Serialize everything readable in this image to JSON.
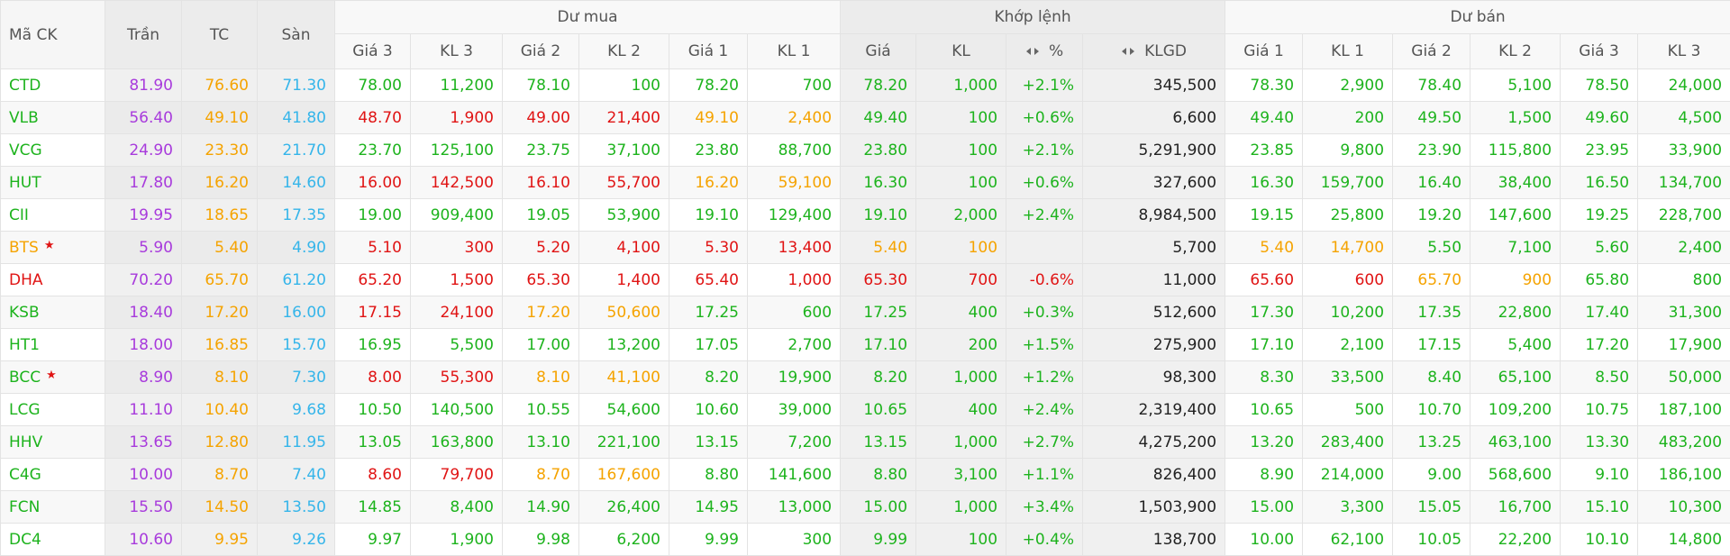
{
  "header": {
    "fixed": [
      "Mã CK",
      "Trần",
      "TC",
      "Sàn"
    ],
    "groups": [
      {
        "label": "Dư mua",
        "columns": [
          {
            "label": "Giá 3"
          },
          {
            "label": "KL 3"
          },
          {
            "label": "Giá 2"
          },
          {
            "label": "KL 2"
          },
          {
            "label": "Giá 1"
          },
          {
            "label": "KL 1"
          }
        ]
      },
      {
        "label": "Khớp lệnh",
        "columns": [
          {
            "label": "Giá"
          },
          {
            "label": "KL"
          },
          {
            "label": "%",
            "toggle": true
          },
          {
            "label": "KLGD",
            "toggle": true
          }
        ]
      },
      {
        "label": "Dư bán",
        "columns": [
          {
            "label": "Giá 1"
          },
          {
            "label": "KL 1"
          },
          {
            "label": "Giá 2"
          },
          {
            "label": "KL 2"
          },
          {
            "label": "Giá 3"
          },
          {
            "label": "KL 3"
          }
        ]
      }
    ]
  },
  "colors": {
    "ceiling": "#a83bdc",
    "reference": "#f5a300",
    "floor": "#35b5ea",
    "up": "#1db31d",
    "down": "#e01414",
    "star": "#e01414"
  },
  "table": {
    "rows": [
      {
        "cells": [
          "CTD",
          "81.90",
          "76.60",
          "71.30",
          "78.00",
          "11,200",
          "78.10",
          "100",
          "78.20",
          "700",
          "78.20",
          "1,000",
          "+2.1%",
          "345,500",
          "78.30",
          "2,900",
          "78.40",
          "5,100",
          "78.50",
          "24,000"
        ]
      },
      {
        "cells": [
          "VLB",
          "56.40",
          "49.10",
          "41.80",
          "48.70",
          "1,900",
          "49.00",
          "21,400",
          "49.10",
          "2,400",
          "49.40",
          "100",
          "+0.6%",
          "6,600",
          "49.40",
          "200",
          "49.50",
          "1,500",
          "49.60",
          "4,500"
        ]
      },
      {
        "cells": [
          "VCG",
          "24.90",
          "23.30",
          "21.70",
          "23.70",
          "125,100",
          "23.75",
          "37,100",
          "23.80",
          "88,700",
          "23.80",
          "100",
          "+2.1%",
          "5,291,900",
          "23.85",
          "9,800",
          "23.90",
          "115,800",
          "23.95",
          "33,900"
        ]
      },
      {
        "cells": [
          "HUT",
          "17.80",
          "16.20",
          "14.60",
          "16.00",
          "142,500",
          "16.10",
          "55,700",
          "16.20",
          "59,100",
          "16.30",
          "100",
          "+0.6%",
          "327,600",
          "16.30",
          "159,700",
          "16.40",
          "38,400",
          "16.50",
          "134,700"
        ]
      },
      {
        "cells": [
          "CII",
          "19.95",
          "18.65",
          "17.35",
          "19.00",
          "909,400",
          "19.05",
          "53,900",
          "19.10",
          "129,400",
          "19.10",
          "2,000",
          "+2.4%",
          "8,984,500",
          "19.15",
          "25,800",
          "19.20",
          "147,600",
          "19.25",
          "228,700"
        ]
      },
      {
        "cells": [
          "BTS",
          "5.90",
          "5.40",
          "4.90",
          "5.10",
          "300",
          "5.20",
          "4,100",
          "5.30",
          "13,400",
          "5.40",
          "100",
          null,
          "5,700",
          "5.40",
          "14,700",
          "5.50",
          "7,100",
          "5.60",
          "2,400"
        ],
        "star": true
      },
      {
        "cells": [
          "DHA",
          "70.20",
          "65.70",
          "61.20",
          "65.20",
          "1,500",
          "65.30",
          "1,400",
          "65.40",
          "1,000",
          "65.30",
          "700",
          "-0.6%",
          "11,000",
          "65.60",
          "600",
          "65.70",
          "900",
          "65.80",
          "800"
        ]
      },
      {
        "cells": [
          "KSB",
          "18.40",
          "17.20",
          "16.00",
          "17.15",
          "24,100",
          "17.20",
          "50,600",
          "17.25",
          "600",
          "17.25",
          "400",
          "+0.3%",
          "512,600",
          "17.30",
          "10,200",
          "17.35",
          "22,800",
          "17.40",
          "31,300"
        ]
      },
      {
        "cells": [
          "HT1",
          "18.00",
          "16.85",
          "15.70",
          "16.95",
          "5,500",
          "17.00",
          "13,200",
          "17.05",
          "2,700",
          "17.10",
          "200",
          "+1.5%",
          "275,900",
          "17.10",
          "2,100",
          "17.15",
          "5,400",
          "17.20",
          "17,900"
        ]
      },
      {
        "cells": [
          "BCC",
          "8.90",
          "8.10",
          "7.30",
          "8.00",
          "55,300",
          "8.10",
          "41,100",
          "8.20",
          "19,900",
          "8.20",
          "1,000",
          "+1.2%",
          "98,300",
          "8.30",
          "33,500",
          "8.40",
          "65,100",
          "8.50",
          "50,000"
        ],
        "star": true
      },
      {
        "cells": [
          "LCG",
          "11.10",
          "10.40",
          "9.68",
          "10.50",
          "140,500",
          "10.55",
          "54,600",
          "10.60",
          "39,000",
          "10.65",
          "400",
          "+2.4%",
          "2,319,400",
          "10.65",
          "500",
          "10.70",
          "109,200",
          "10.75",
          "187,100"
        ]
      },
      {
        "cells": [
          "HHV",
          "13.65",
          "12.80",
          "11.95",
          "13.05",
          "163,800",
          "13.10",
          "221,100",
          "13.15",
          "7,200",
          "13.15",
          "1,000",
          "+2.7%",
          "4,275,200",
          "13.20",
          "283,400",
          "13.25",
          "463,100",
          "13.30",
          "483,200"
        ]
      },
      {
        "cells": [
          "C4G",
          "10.00",
          "8.70",
          "7.40",
          "8.60",
          "79,700",
          "8.70",
          "167,600",
          "8.80",
          "141,600",
          "8.80",
          "3,100",
          "+1.1%",
          "826,400",
          "8.90",
          "214,000",
          "9.00",
          "568,600",
          "9.10",
          "186,100"
        ]
      },
      {
        "cells": [
          "FCN",
          "15.50",
          "14.50",
          "13.50",
          "14.85",
          "8,400",
          "14.90",
          "26,400",
          "14.95",
          "13,000",
          "15.00",
          "1,000",
          "+3.4%",
          "1,503,900",
          "15.00",
          "3,300",
          "15.05",
          "16,700",
          "15.10",
          "10,300"
        ]
      },
      {
        "cells": [
          "DC4",
          "10.60",
          "9.95",
          "9.26",
          "9.97",
          "1,900",
          "9.98",
          "6,200",
          "9.99",
          "300",
          "9.99",
          "100",
          "+0.4%",
          "138,700",
          "10.00",
          "62,100",
          "10.05",
          "22,200",
          "10.10",
          "14,800"
        ]
      }
    ]
  }
}
